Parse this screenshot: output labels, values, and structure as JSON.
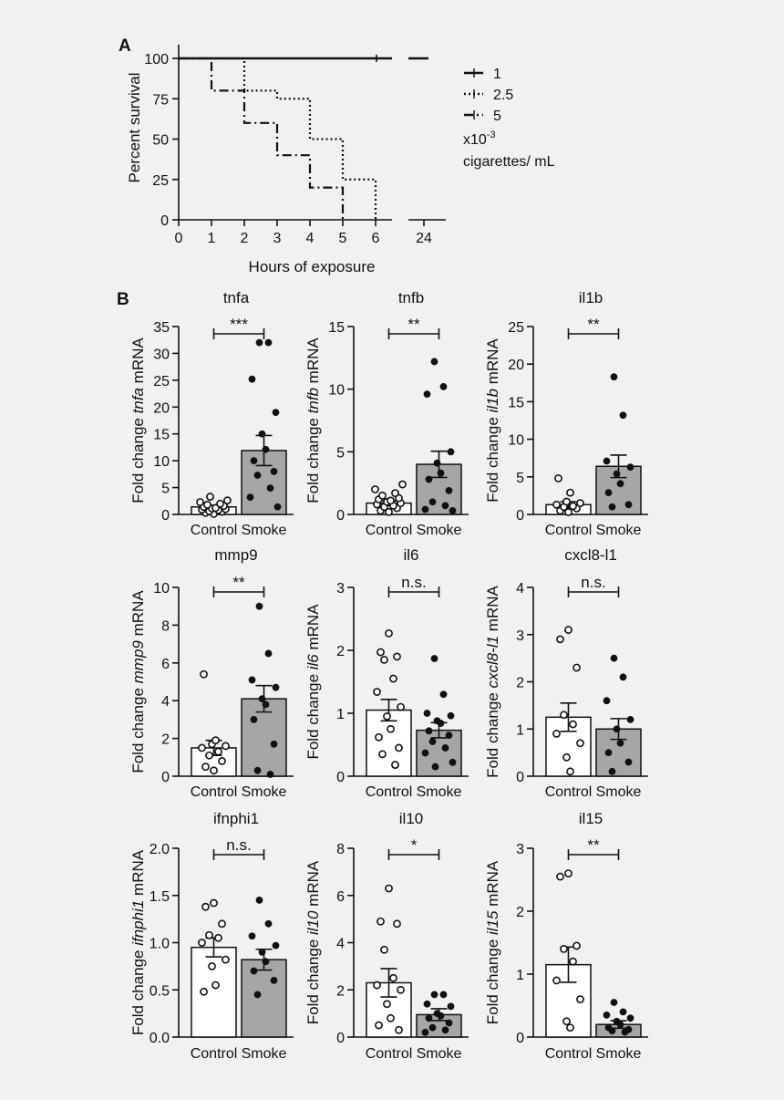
{
  "panel_labels": [
    "A",
    "B"
  ],
  "chart_data": [
    {
      "panel": "A",
      "type": "line",
      "ylabel": "Percent survival",
      "xlabel": "Hours of exposure",
      "xticks": [
        "0",
        "1",
        "2",
        "3",
        "4",
        "5",
        "6",
        "24"
      ],
      "yticks": [
        "0",
        "25",
        "50",
        "75",
        "100"
      ],
      "ylim": [
        0,
        100
      ],
      "axis_break": "between 6 and 24 hours",
      "legend": {
        "placement": "right",
        "note_line1": "x10-3",
        "note_line2": "cigarettes/ mL"
      },
      "series": [
        {
          "name": "1",
          "style": "solid",
          "x": [
            0,
            24
          ],
          "y": [
            100,
            100
          ]
        },
        {
          "name": "2.5",
          "style": "dotted",
          "x": [
            0,
            2,
            3,
            4,
            5,
            6
          ],
          "y": [
            100,
            80,
            75,
            50,
            25,
            0
          ]
        },
        {
          "name": "5",
          "style": "dash-dot",
          "x": [
            0,
            1,
            2,
            3,
            4,
            5
          ],
          "y": [
            100,
            80,
            60,
            40,
            20,
            0
          ]
        }
      ]
    },
    {
      "panel": "B",
      "type": "bar",
      "title": "tnfa",
      "gene": "tnfa",
      "ylim": [
        0,
        35
      ],
      "yticks": [
        0,
        5,
        10,
        15,
        20,
        25,
        30,
        35
      ],
      "sig": "***",
      "categories": [
        "Control",
        "Smoke"
      ],
      "values": [
        1.4,
        11.9
      ],
      "sem": [
        0.3,
        2.8
      ],
      "control_points": [
        0.1,
        0.3,
        0.5,
        0.6,
        0.8,
        0.9,
        1.0,
        1.1,
        1.2,
        1.4,
        1.6,
        1.8,
        2.0,
        2.3,
        2.6,
        3.3
      ],
      "smoke_points": [
        32.0,
        32.0,
        25.2,
        19.0,
        15.0,
        12.1,
        10.0,
        8.0,
        7.3,
        4.9,
        3.2,
        1.4
      ]
    },
    {
      "panel": "B",
      "type": "bar",
      "title": "tnfb",
      "gene": "tnfb",
      "ylim": [
        0,
        15
      ],
      "yticks": [
        0,
        5,
        10,
        15
      ],
      "sig": "**",
      "categories": [
        "Control",
        "Smoke"
      ],
      "values": [
        0.9,
        4.0
      ],
      "sem": [
        0.2,
        1.05
      ],
      "control_points": [
        0.2,
        0.3,
        0.5,
        0.6,
        0.7,
        0.8,
        0.9,
        1.0,
        1.1,
        1.2,
        1.3,
        1.5,
        1.7,
        2.0,
        2.4
      ],
      "smoke_points": [
        12.2,
        10.2,
        9.6,
        5.0,
        4.1,
        3.3,
        2.8,
        1.9,
        1.0,
        0.7,
        0.4,
        0.3
      ]
    },
    {
      "panel": "B",
      "type": "bar",
      "title": "il1b",
      "gene": "il1b",
      "ylim": [
        0,
        25
      ],
      "yticks": [
        0,
        5,
        10,
        15,
        20,
        25
      ],
      "sig": "**",
      "categories": [
        "Control",
        "Smoke"
      ],
      "values": [
        1.3,
        6.4
      ],
      "sem": [
        0.4,
        1.5
      ],
      "control_points": [
        0.3,
        0.5,
        0.8,
        1.0,
        1.1,
        1.3,
        1.5,
        1.7,
        2.9,
        4.8
      ],
      "smoke_points": [
        18.3,
        13.2,
        7.1,
        6.3,
        5.4,
        4.1,
        2.9,
        1.3,
        1.0
      ]
    },
    {
      "panel": "B",
      "type": "bar",
      "title": "mmp9",
      "gene": "mmp9",
      "ylim": [
        0,
        10
      ],
      "yticks": [
        0,
        2,
        4,
        6,
        8,
        10
      ],
      "sig": "**",
      "categories": [
        "Control",
        "Smoke"
      ],
      "values": [
        1.5,
        4.1
      ],
      "sem": [
        0.4,
        0.7
      ],
      "control_points": [
        0.3,
        0.5,
        0.8,
        1.1,
        1.3,
        1.5,
        1.6,
        1.7,
        1.9,
        5.4
      ],
      "smoke_points": [
        9.0,
        6.5,
        5.1,
        4.7,
        4.1,
        3.8,
        3.0,
        1.7,
        0.3,
        0.1
      ]
    },
    {
      "panel": "B",
      "type": "bar",
      "title": "il6",
      "gene": "il6",
      "ylim": [
        0,
        3
      ],
      "yticks": [
        0,
        1,
        2,
        3
      ],
      "sig": "n.s.",
      "categories": [
        "Control",
        "Smoke"
      ],
      "values": [
        1.05,
        0.73
      ],
      "sem": [
        0.17,
        0.12
      ],
      "control_points": [
        2.27,
        1.97,
        1.9,
        1.85,
        1.55,
        1.34,
        1.1,
        0.95,
        0.75,
        0.62,
        0.45,
        0.35,
        0.18
      ],
      "smoke_points": [
        1.87,
        1.3,
        1.0,
        0.96,
        0.88,
        0.84,
        0.72,
        0.65,
        0.55,
        0.45,
        0.37,
        0.22,
        0.15
      ]
    },
    {
      "panel": "B",
      "type": "bar",
      "title": "cxcl8-l1",
      "gene": "cxcl8-l1",
      "ylim": [
        0,
        4
      ],
      "yticks": [
        0,
        1,
        2,
        3,
        4
      ],
      "sig": "n.s.",
      "categories": [
        "Control",
        "Smoke"
      ],
      "values": [
        1.25,
        1.0
      ],
      "sem": [
        0.3,
        0.22
      ],
      "control_points": [
        3.1,
        2.9,
        2.3,
        1.3,
        1.1,
        0.9,
        0.7,
        0.4,
        0.1
      ],
      "smoke_points": [
        2.5,
        2.1,
        1.6,
        1.2,
        1.0,
        0.7,
        0.5,
        0.3,
        0.1
      ]
    },
    {
      "panel": "B",
      "type": "bar",
      "title": "ifnphi1",
      "gene": "ifnphi1",
      "ylim": [
        0,
        2.0
      ],
      "yticks": [
        0.0,
        0.5,
        1.0,
        1.5,
        2.0
      ],
      "yticklabels": [
        "0.0",
        "0.5",
        "1.0",
        "1.5",
        "2.0"
      ],
      "sig": "n.s.",
      "categories": [
        "Control",
        "Smoke"
      ],
      "values": [
        0.95,
        0.82
      ],
      "sem": [
        0.1,
        0.11
      ],
      "control_points": [
        1.42,
        1.38,
        1.2,
        1.08,
        1.05,
        1.0,
        0.82,
        0.75,
        0.55,
        0.48
      ],
      "smoke_points": [
        1.45,
        1.2,
        1.07,
        0.97,
        0.9,
        0.8,
        0.7,
        0.6,
        0.45
      ]
    },
    {
      "panel": "B",
      "type": "bar",
      "title": "il10",
      "gene": "il10",
      "ylim": [
        0,
        8
      ],
      "yticks": [
        0,
        2,
        4,
        6,
        8
      ],
      "sig": "*",
      "categories": [
        "Control",
        "Smoke"
      ],
      "values": [
        2.3,
        0.95
      ],
      "sem": [
        0.6,
        0.25
      ],
      "control_points": [
        6.3,
        4.9,
        4.8,
        3.7,
        2.5,
        2.2,
        2.0,
        1.4,
        0.8,
        0.5,
        0.3
      ],
      "smoke_points": [
        1.8,
        1.8,
        1.4,
        1.3,
        1.0,
        0.9,
        0.8,
        0.6,
        0.4,
        0.3,
        0.2
      ]
    },
    {
      "panel": "B",
      "type": "bar",
      "title": "il15",
      "gene": "il15",
      "ylim": [
        0,
        3
      ],
      "yticks": [
        0,
        1,
        2,
        3
      ],
      "sig": "**",
      "categories": [
        "Control",
        "Smoke"
      ],
      "values": [
        1.15,
        0.2
      ],
      "sem": [
        0.28,
        0.06
      ],
      "control_points": [
        2.6,
        2.55,
        1.45,
        1.4,
        1.2,
        0.9,
        0.6,
        0.25,
        0.15
      ],
      "smoke_points": [
        0.55,
        0.4,
        0.35,
        0.3,
        0.25,
        0.2,
        0.15,
        0.12,
        0.1,
        0.08
      ]
    }
  ]
}
